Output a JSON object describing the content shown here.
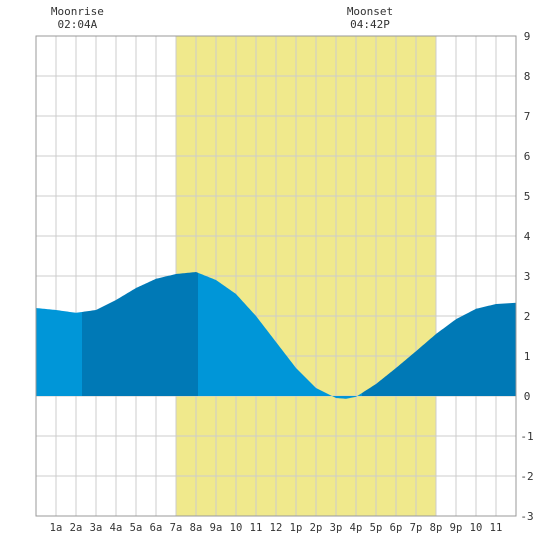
{
  "chart_data": {
    "type": "area",
    "title": "",
    "xlabel": "",
    "ylabel": "",
    "x_unit": "hour of day",
    "xlim": [
      -1,
      23
    ],
    "ylim": [
      -3,
      9
    ],
    "grid": true,
    "x_tick_labels": [
      "1a",
      "2a",
      "3a",
      "4a",
      "5a",
      "6a",
      "7a",
      "8a",
      "9a",
      "10",
      "11",
      "12",
      "1p",
      "2p",
      "3p",
      "4p",
      "5p",
      "6p",
      "7p",
      "8p",
      "9p",
      "10",
      "11"
    ],
    "y_ticks": [
      -3,
      -2,
      -1,
      0,
      1,
      2,
      3,
      4,
      5,
      6,
      7,
      8,
      9
    ],
    "daylight": {
      "start": 6.0,
      "end": 19.0,
      "color": "#f0e98c"
    },
    "moon_events": [
      {
        "label": "Moonrise",
        "time": "02:04A",
        "x": 1.07
      },
      {
        "label": "Moonset",
        "time": "04:42P",
        "x": 15.7
      }
    ],
    "tide_bands": [
      {
        "start": -1.0,
        "end": 1.3,
        "color": "#0096d8"
      },
      {
        "start": 1.3,
        "end": 7.1,
        "color": "#0079b6"
      },
      {
        "start": 7.1,
        "end": 15.3,
        "color": "#0096d8"
      },
      {
        "start": 15.3,
        "end": 23.0,
        "color": "#0079b6"
      }
    ],
    "series": [
      {
        "values": [
          [
            -1.0,
            2.2
          ],
          [
            0.0,
            2.15
          ],
          [
            1.0,
            2.08
          ],
          [
            2.0,
            2.15
          ],
          [
            3.0,
            2.4
          ],
          [
            4.0,
            2.7
          ],
          [
            5.0,
            2.93
          ],
          [
            6.0,
            3.05
          ],
          [
            7.0,
            3.1
          ],
          [
            8.0,
            2.9
          ],
          [
            9.0,
            2.55
          ],
          [
            10.0,
            2.0
          ],
          [
            11.0,
            1.35
          ],
          [
            12.0,
            0.7
          ],
          [
            13.0,
            0.2
          ],
          [
            14.0,
            -0.05
          ],
          [
            14.5,
            -0.07
          ],
          [
            15.0,
            -0.02
          ],
          [
            16.0,
            0.3
          ],
          [
            17.0,
            0.7
          ],
          [
            18.0,
            1.12
          ],
          [
            19.0,
            1.55
          ],
          [
            20.0,
            1.92
          ],
          [
            21.0,
            2.18
          ],
          [
            22.0,
            2.3
          ],
          [
            23.0,
            2.33
          ]
        ]
      }
    ]
  }
}
